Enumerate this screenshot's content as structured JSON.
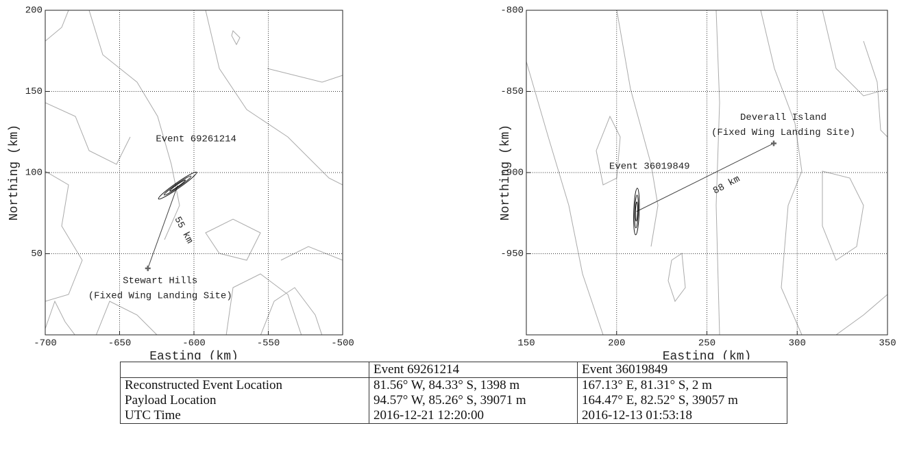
{
  "chart_data": [
    {
      "type": "contour_map",
      "xlabel": "Easting (km)",
      "ylabel": "Northing (km)",
      "xlim": [
        -700,
        -500
      ],
      "ylim": [
        0,
        200
      ],
      "xticks": [
        -700,
        -650,
        -600,
        -550,
        -500
      ],
      "yticks": [
        50,
        100,
        150,
        200
      ],
      "grid": true,
      "event": {
        "label": "Event 69261214",
        "x": -611,
        "y": 92
      },
      "landing_site": {
        "name": "Stewart Hills",
        "note": "(Fixed Wing Landing Site)",
        "x": -631,
        "y": 41
      },
      "distance_label": "55 km"
    },
    {
      "type": "contour_map",
      "xlabel": "Easting (km)",
      "ylabel": "Northing (km)",
      "xlim": [
        150,
        350
      ],
      "ylim": [
        -1000,
        -800
      ],
      "xticks": [
        150,
        200,
        250,
        300,
        350
      ],
      "yticks": [
        -800,
        -850,
        -900,
        -950
      ],
      "grid": true,
      "event": {
        "label": "Event 36019849",
        "x": 211,
        "y": -924
      },
      "landing_site": {
        "name": "Deverall Island",
        "note": "(Fixed Wing Landing Site)",
        "x": 287,
        "y": -882
      },
      "distance_label": "88 km"
    }
  ],
  "table": {
    "header": [
      "Event 69261214",
      "Event 36019849"
    ],
    "rows": [
      [
        "Reconstructed Event Location",
        "81.56° W, 84.33° S, 1398 m",
        "167.13° E, 81.31° S, 2 m"
      ],
      [
        "Payload Location",
        "94.57° W, 85.26° S, 39071 m",
        "164.47° E, 82.52° S, 39057 m"
      ],
      [
        "UTC Time",
        "2016-12-21 12:20:00",
        "2016-12-13 01:53:18"
      ]
    ]
  }
}
